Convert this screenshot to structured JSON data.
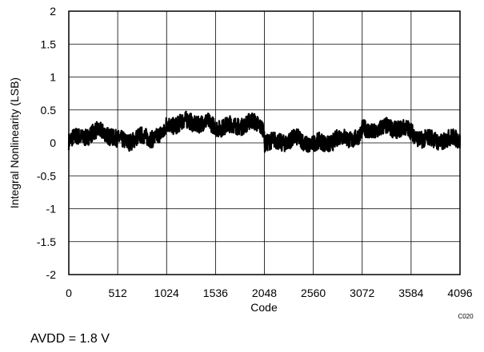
{
  "chart_data": {
    "type": "line",
    "xlabel": "Code",
    "ylabel": "Integral Nonlinearity (LSB)",
    "xlim": [
      0,
      4096
    ],
    "ylim": [
      -2,
      2
    ],
    "x_ticks": [
      0,
      512,
      1024,
      1536,
      2048,
      2560,
      3072,
      3584,
      4096
    ],
    "y_ticks": [
      2,
      1.5,
      1,
      0.5,
      0,
      -0.5,
      -1,
      -1.5,
      -2
    ],
    "grid": true,
    "figure_id": "C020",
    "series": [
      {
        "color": "#000000",
        "x": [
          0,
          128,
          256,
          384,
          512,
          640,
          768,
          896,
          1000,
          1024,
          1152,
          1280,
          1408,
          1536,
          1664,
          1792,
          1920,
          2040,
          2048,
          2176,
          2304,
          2432,
          2560,
          2688,
          2816,
          2944,
          3060,
          3072,
          3200,
          3328,
          3456,
          3584,
          3712,
          3840,
          3968,
          4096
        ],
        "values": [
          0.02,
          0.1,
          0.14,
          0.18,
          0.02,
          0.05,
          0.08,
          0.1,
          0.12,
          0.28,
          0.3,
          0.32,
          0.3,
          0.26,
          0.24,
          0.28,
          0.3,
          0.26,
          0.02,
          0.0,
          0.05,
          0.04,
          -0.02,
          0.0,
          0.06,
          0.08,
          0.1,
          0.18,
          0.2,
          0.22,
          0.24,
          0.16,
          0.06,
          0.04,
          0.05,
          0.05
        ]
      }
    ]
  },
  "caption": "AVDD = 1.8 V"
}
